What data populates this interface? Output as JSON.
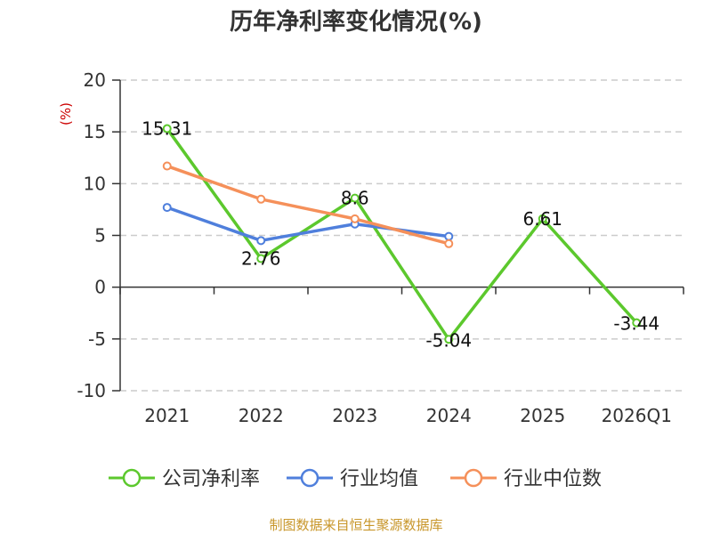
{
  "chart_data": {
    "type": "line",
    "title": "历年净利率变化情况(%)",
    "ylabel": "(%)",
    "categories": [
      "2021",
      "2022",
      "2023",
      "2024",
      "2025",
      "2026Q1"
    ],
    "ylim": [
      -10,
      20
    ],
    "yticks": [
      20,
      15,
      10,
      5,
      0,
      -5,
      -10
    ],
    "grid": true,
    "legend_position": "bottom",
    "series": [
      {
        "name": "公司净利率",
        "color": "#5cc82d",
        "values": [
          15.31,
          2.76,
          8.6,
          -5.04,
          6.61,
          -3.44
        ],
        "labels": [
          "15.31",
          "2.76",
          "8.6",
          "-5.04",
          "6.61",
          "-3.44"
        ]
      },
      {
        "name": "行业均值",
        "color": "#4f7fdc",
        "values": [
          7.7,
          4.5,
          6.1,
          4.9,
          null,
          null
        ]
      },
      {
        "name": "行业中位数",
        "color": "#f5905a",
        "values": [
          11.7,
          8.5,
          6.6,
          4.2,
          null,
          null
        ]
      }
    ]
  },
  "colors": {
    "ylabel": "#cc0000",
    "source": "#c8962a",
    "axis": "#333333",
    "grid": "#cccccc"
  },
  "source": "制图数据来自恒生聚源数据库"
}
